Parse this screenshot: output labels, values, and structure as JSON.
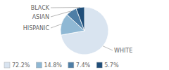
{
  "chart_data": {
    "type": "pie",
    "categories": [
      "WHITE",
      "HISPANIC",
      "ASIAN",
      "BLACK"
    ],
    "values": [
      72.2,
      14.8,
      7.4,
      5.7
    ],
    "value_labels": [
      "72.2%",
      "14.8%",
      "7.4%",
      "5.7%"
    ],
    "colors": [
      "#d9e4f0",
      "#8fb8d4",
      "#4e7ea6",
      "#1f4e79"
    ],
    "legend": "lower left"
  }
}
